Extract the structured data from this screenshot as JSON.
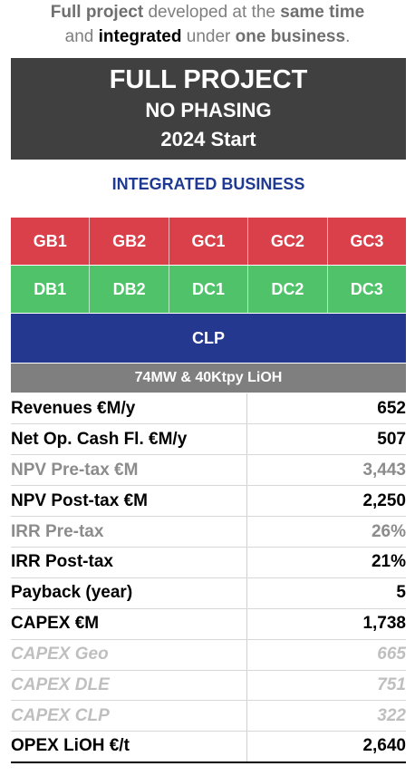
{
  "intro": {
    "line1_bold1": "Full project",
    "line1_mid": " developed at the ",
    "line1_bold2": "same time",
    "line2_start": "and ",
    "line2_bold1": "integrated",
    "line2_mid": " under ",
    "line2_bold2": "one business",
    "line2_end": "."
  },
  "title": {
    "line1": "FULL PROJECT",
    "line2": "NO PHASING",
    "line3": "2024 Start"
  },
  "business_label": "INTEGRATED BUSINESS",
  "colors": {
    "red": "#d9404a",
    "green": "#4fc26a",
    "blue": "#25388f",
    "grey": "#7f7f7f",
    "dark": "#404040",
    "accent_text": "#1f3a93"
  },
  "row_g": [
    "GB1",
    "GB2",
    "GC1",
    "GC2",
    "GC3"
  ],
  "row_d": [
    "DB1",
    "DB2",
    "DC1",
    "DC2",
    "DC3"
  ],
  "clp": "CLP",
  "capacity": "74MW & 40Ktpy LiOH",
  "metrics": [
    {
      "label": "Revenues €M/y",
      "value": "652"
    },
    {
      "label": "Net Op. Cash Fl. €M/y",
      "value": "507"
    },
    {
      "label": "NPV Pre-tax €M",
      "value": "3,443"
    },
    {
      "label": "NPV Post-tax €M",
      "value": "2,250"
    },
    {
      "label": "IRR Pre-tax",
      "value": "26%"
    },
    {
      "label": "IRR Post-tax",
      "value": "21%"
    },
    {
      "label": "Payback (year)",
      "value": "5"
    },
    {
      "label": "CAPEX €M",
      "value": "1,738"
    },
    {
      "label": "CAPEX Geo",
      "value": "665"
    },
    {
      "label": "CAPEX DLE",
      "value": "751"
    },
    {
      "label": "CAPEX CLP",
      "value": "322"
    },
    {
      "label": "OPEX LiOH €/t",
      "value": "2,640"
    }
  ]
}
